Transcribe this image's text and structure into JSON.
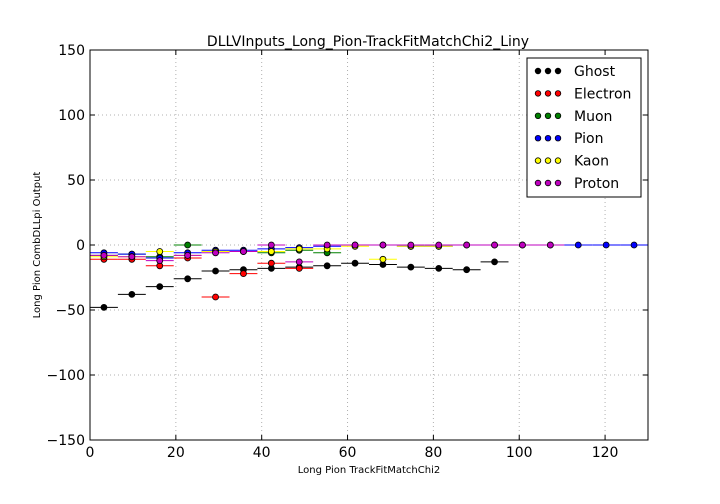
{
  "chart_data": {
    "type": "scatter",
    "title": "DLLVInputs_Long_Pion-TrackFitMatchChi2_Liny",
    "xlabel": "Long Pion TrackFitMatchChi2",
    "ylabel": "Long Pion CombDLLpi Output",
    "xlim": [
      0,
      130
    ],
    "ylim": [
      -150,
      150
    ],
    "xticks": [
      0,
      20,
      40,
      60,
      80,
      100,
      120
    ],
    "yticks": [
      -150,
      -100,
      -50,
      0,
      50,
      100,
      150
    ],
    "xtick_labels": [
      "0",
      "20",
      "40",
      "60",
      "80",
      "100",
      "120"
    ],
    "ytick_labels": [
      "−150",
      "−100",
      "−50",
      "0",
      "50",
      "100",
      "150"
    ],
    "grid": true,
    "legend_position": "top-right",
    "bin_halfwidth": 3.25,
    "series": [
      {
        "name": "Ghost",
        "color": "#000000",
        "x": [
          3.25,
          9.75,
          16.25,
          22.75,
          29.25,
          35.75,
          42.25,
          48.75,
          55.25,
          61.75,
          68.25,
          74.75,
          81.25,
          87.75,
          94.25
        ],
        "y": [
          -48,
          -38,
          -32,
          -26,
          -20,
          -19,
          -18,
          -17,
          -16,
          -14,
          -15,
          -17,
          -18,
          -19,
          -13
        ]
      },
      {
        "name": "Electron",
        "color": "#ff0000",
        "x": [
          3.25,
          9.75,
          16.25,
          22.75,
          29.25,
          35.75,
          42.25,
          48.75
        ],
        "y": [
          -11,
          -11,
          -16,
          -10,
          -40,
          -22,
          -14,
          -18
        ]
      },
      {
        "name": "Muon",
        "color": "#008000",
        "x": [
          3.25,
          9.75,
          16.25,
          22.75,
          29.25,
          35.75,
          42.25,
          48.75,
          55.25
        ],
        "y": [
          -8,
          -7,
          -9,
          0,
          -5,
          -5,
          -6,
          -4,
          -6
        ]
      },
      {
        "name": "Pion",
        "color": "#0000ff",
        "x": [
          3.25,
          9.75,
          16.25,
          22.75,
          29.25,
          35.75,
          42.25,
          48.75,
          55.25,
          61.75,
          68.25,
          74.75,
          81.25,
          87.75,
          94.25,
          100.75,
          107.25,
          113.75,
          120.25,
          126.75
        ],
        "y": [
          -6,
          -7,
          -10,
          -6,
          -4,
          -4,
          -3,
          -2,
          -1,
          0,
          0,
          -1,
          -1,
          0,
          0,
          0,
          0,
          0,
          0,
          0
        ]
      },
      {
        "name": "Kaon",
        "color": "#ffff00",
        "x": [
          3.25,
          9.75,
          16.25,
          22.75,
          29.25,
          35.75,
          42.25,
          48.75,
          55.25,
          61.75,
          68.25,
          74.75,
          81.25
        ],
        "y": [
          -9,
          -9,
          -5,
          -8,
          -5,
          -5,
          -5,
          -3,
          -3,
          -1,
          -11,
          -1,
          -1
        ]
      },
      {
        "name": "Proton",
        "color": "#bf00bf",
        "x": [
          3.25,
          9.75,
          16.25,
          22.75,
          29.25,
          35.75,
          42.25,
          48.75,
          55.25,
          61.75,
          68.25,
          74.75,
          81.25,
          87.75,
          94.25,
          100.75,
          107.25
        ],
        "y": [
          -8,
          -9,
          -12,
          -8,
          -6,
          -5,
          0,
          -13,
          0,
          0,
          0,
          0,
          0,
          0,
          0,
          0,
          0
        ]
      }
    ]
  }
}
